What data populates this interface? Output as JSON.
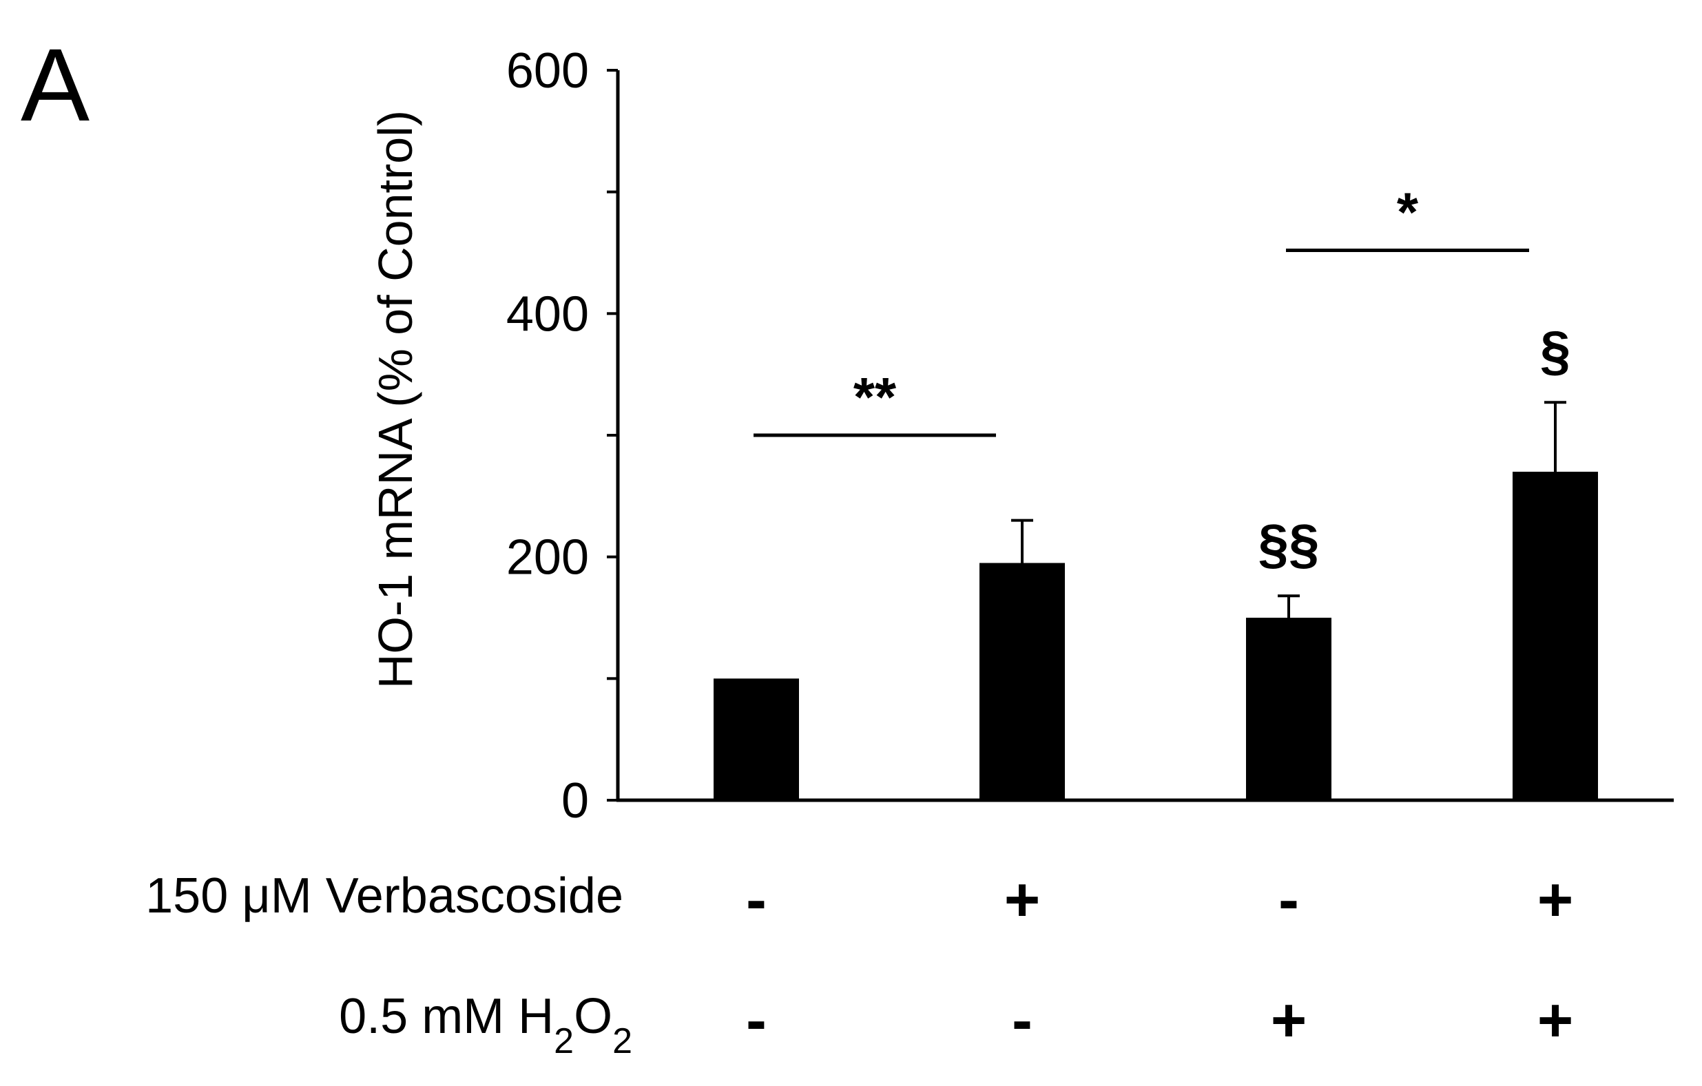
{
  "panel_label": "A",
  "colors": {
    "bar": "#000000",
    "axis": "#000000",
    "background": "#ffffff"
  },
  "chart_data": {
    "type": "bar",
    "ylabel": "HO-1 mRNA (% of Control)",
    "xlabel": "",
    "ylim": [
      0,
      600
    ],
    "yticks": [
      0,
      200,
      400,
      600
    ],
    "grid": false,
    "values": [
      100,
      195,
      150,
      270
    ],
    "errors": [
      0,
      35,
      18,
      57
    ],
    "conditions": [
      {
        "label": "150 μM Verbascoside",
        "signs": [
          "-",
          "+",
          "-",
          "+"
        ]
      },
      {
        "label": "0.5 mM H2O2",
        "signs": [
          "-",
          "-",
          "+",
          "+"
        ]
      }
    ],
    "bar_annotations": [
      "",
      "",
      "§§",
      "§"
    ],
    "comparisons": [
      {
        "from": 0,
        "to": 1,
        "label": "**",
        "y": 300
      },
      {
        "from": 2,
        "to": 3,
        "label": "*",
        "y": 452
      }
    ]
  }
}
